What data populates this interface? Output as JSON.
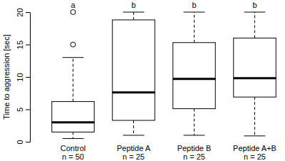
{
  "chart_data": {
    "type": "box",
    "y_label": "Time to aggression [sec]",
    "categories": [
      "Control",
      "Peptide A",
      "Peptide B",
      "Peptide A+B"
    ],
    "n_labels": [
      "n = 50",
      "n = 25",
      "n = 25",
      "n = 25"
    ],
    "group_labels": [
      "a",
      "b",
      "b",
      "b"
    ],
    "whisker_low": [
      0.5,
      1,
      1,
      0.9
    ],
    "q1": [
      1.5,
      3.3,
      5.1,
      6.9
    ],
    "median": [
      3,
      7.6,
      9.7,
      9.8
    ],
    "q3": [
      6.2,
      18.8,
      15.3,
      16
    ],
    "whisker_high": [
      13,
      20,
      20,
      20
    ],
    "outliers": [
      [
        15,
        20
      ],
      [],
      [],
      []
    ],
    "color": "#000000",
    "ylim": [
      0,
      20
    ],
    "yticks": [
      0,
      5,
      10,
      15,
      20
    ]
  }
}
